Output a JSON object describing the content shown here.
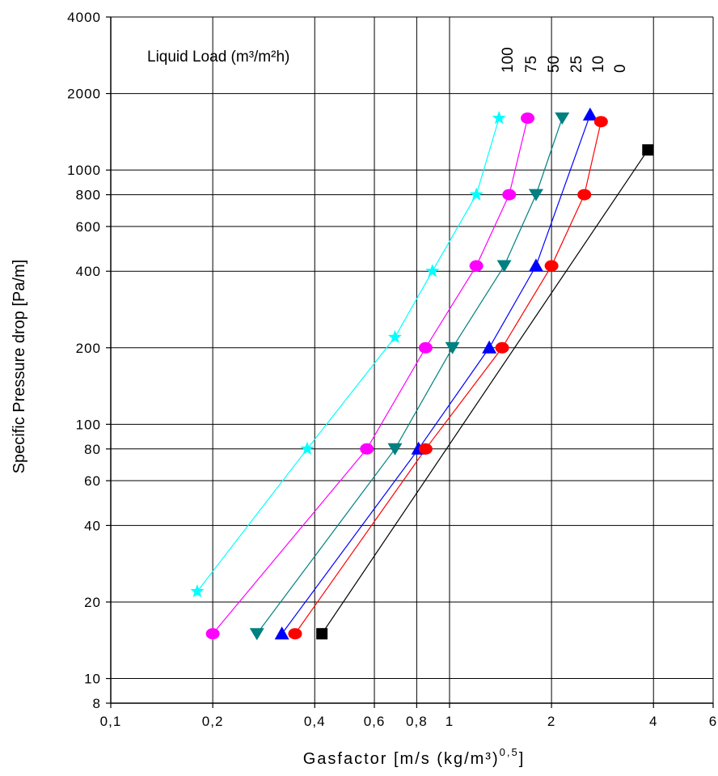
{
  "chart_data": {
    "type": "line",
    "xscale": "log",
    "yscale": "log",
    "xlim": [
      0.1,
      6
    ],
    "ylim": [
      8,
      4000
    ],
    "grid": true,
    "xlabel": "Gasfactor [m/s (kg/m³)",
    "xlabel_sup": "0,5",
    "xlabel_tail": "]",
    "ylabel": "Specific Pressure drop [Pa/m]",
    "x_ticks": [
      0.1,
      0.2,
      0.4,
      0.6,
      0.8,
      1,
      2,
      4,
      6
    ],
    "x_tick_labels": [
      "0,1",
      "0,2",
      "0,4",
      "0,6",
      "0,8",
      "1",
      "2",
      "4",
      "6"
    ],
    "y_ticks": [
      8,
      10,
      20,
      40,
      60,
      80,
      100,
      200,
      400,
      600,
      800,
      1000,
      2000,
      4000
    ],
    "y_tick_labels": [
      "8",
      "10",
      "20",
      "40",
      "60",
      "80",
      "100",
      "200",
      "400",
      "600",
      "800",
      "1000",
      "2000",
      "4000"
    ],
    "legend_title": "Liquid Load (m³/m²h)",
    "legend_placement": "top",
    "series": [
      {
        "name": "100",
        "color": "#00ffff",
        "marker": "star",
        "x": [
          0.18,
          0.38,
          0.69,
          0.89,
          1.2,
          1.4
        ],
        "y": [
          22,
          80,
          220,
          400,
          800,
          1600
        ]
      },
      {
        "name": "75",
        "color": "#ff00ff",
        "marker": "circle",
        "x": [
          0.2,
          0.57,
          0.85,
          1.2,
          1.5,
          1.7
        ],
        "y": [
          15,
          80,
          200,
          420,
          800,
          1600
        ]
      },
      {
        "name": "50",
        "color": "#008080",
        "marker": "triangle-down",
        "x": [
          0.27,
          0.69,
          1.02,
          1.45,
          1.8,
          2.15
        ],
        "y": [
          15,
          80,
          200,
          420,
          800,
          1600
        ]
      },
      {
        "name": "25",
        "color": "#0000ff",
        "marker": "triangle-up",
        "x": [
          0.32,
          0.81,
          1.31,
          1.8,
          2.6
        ],
        "y": [
          15,
          80,
          200,
          420,
          1650
        ]
      },
      {
        "name": "10",
        "color": "#ff0000",
        "marker": "circle",
        "x": [
          0.35,
          0.85,
          1.43,
          2.0,
          2.5,
          2.8
        ],
        "y": [
          15,
          80,
          200,
          420,
          800,
          1550
        ]
      },
      {
        "name": "0",
        "color": "#000000",
        "marker": "square",
        "x": [
          0.42,
          3.85
        ],
        "y": [
          15,
          1200
        ]
      }
    ]
  }
}
